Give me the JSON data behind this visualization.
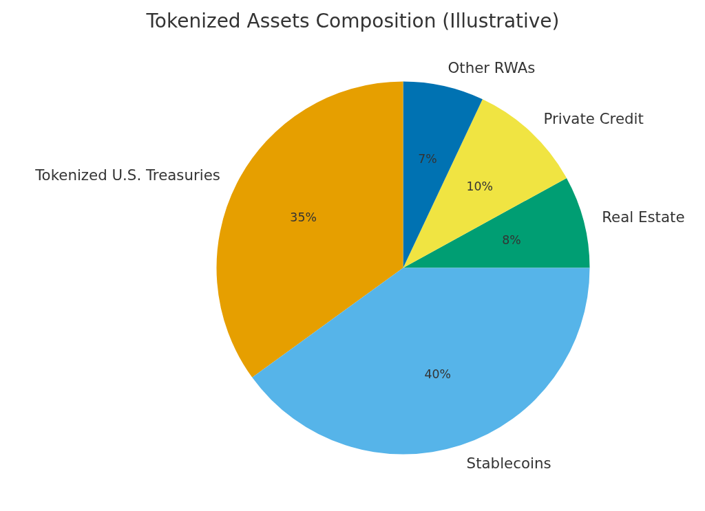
{
  "chart_data": {
    "type": "pie",
    "title": "Tokenized Assets Composition (Illustrative)",
    "categories": [
      "Real Estate",
      "Private Credit",
      "Other RWAs",
      "Tokenized U.S. Treasuries",
      "Stablecoins"
    ],
    "values": [
      8,
      10,
      7,
      35,
      40
    ],
    "colors": [
      "#009e73",
      "#f0e442",
      "#0072b2",
      "#e69f00",
      "#56b4e9"
    ],
    "value_labels": [
      "8%",
      "10%",
      "7%",
      "35%",
      "40%"
    ]
  }
}
